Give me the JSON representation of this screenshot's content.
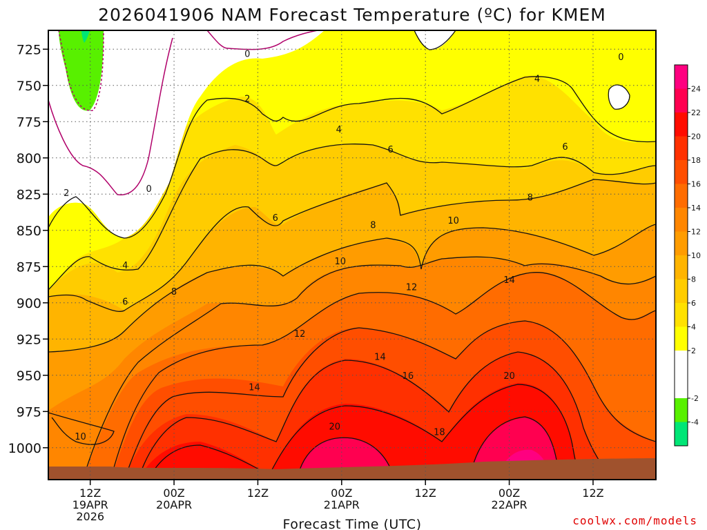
{
  "chart_data": {
    "type": "heatmap",
    "title": "2026041906 NAM Forecast Temperature (ºC) for KMEM",
    "xlabel": "Forecast Time (UTC)",
    "ylabel": "",
    "credit": "coolwx.com/models",
    "y_axis": {
      "unit": "hPa",
      "range": [
        1022,
        712
      ],
      "inverted": true,
      "ticks": [
        725,
        750,
        775,
        800,
        825,
        850,
        875,
        900,
        925,
        950,
        975,
        1000
      ]
    },
    "x_axis": {
      "range_hours": [
        -6,
        81
      ],
      "ticks": [
        {
          "hour": 0,
          "label": "12Z",
          "sub": "19APR",
          "sub2": "2026"
        },
        {
          "hour": 12,
          "label": "00Z",
          "sub": "20APR",
          "sub2": ""
        },
        {
          "hour": 24,
          "label": "12Z",
          "sub": "",
          "sub2": ""
        },
        {
          "hour": 36,
          "label": "00Z",
          "sub": "21APR",
          "sub2": ""
        },
        {
          "hour": 48,
          "label": "12Z",
          "sub": "",
          "sub2": ""
        },
        {
          "hour": 60,
          "label": "00Z",
          "sub": "22APR",
          "sub2": ""
        },
        {
          "hour": 72,
          "label": "12Z",
          "sub": "",
          "sub2": ""
        }
      ]
    },
    "grid": true,
    "colorbar": {
      "placement": "right",
      "levels": [
        -6,
        -4,
        -2,
        0,
        2,
        4,
        6,
        8,
        10,
        12,
        14,
        16,
        18,
        20,
        22,
        24,
        26
      ],
      "labels": [
        -4,
        -2,
        2,
        4,
        6,
        8,
        10,
        12,
        14,
        16,
        18,
        20,
        22,
        24
      ],
      "colors": [
        "#00e676",
        "#58f000",
        "#ffffff",
        "#ffffff",
        "#ffff00",
        "#ffe100",
        "#ffcc00",
        "#ffb400",
        "#ff9c00",
        "#ff8600",
        "#ff6c00",
        "#ff4e00",
        "#ff3000",
        "#ff0c00",
        "#ff0050",
        "#ff0080"
      ]
    },
    "ground_color": "#a0522d",
    "contour_labels": [
      {
        "value": "0",
        "hour": 22.5,
        "p": 728
      },
      {
        "value": "0",
        "hour": 8.4,
        "p": 821
      },
      {
        "value": "0",
        "hour": 76,
        "p": 730
      },
      {
        "value": "2",
        "hour": 22.5,
        "p": 759
      },
      {
        "value": "2",
        "hour": -3.4,
        "p": 824
      },
      {
        "value": "4",
        "hour": 35.6,
        "p": 780
      },
      {
        "value": "4",
        "hour": 64,
        "p": 745
      },
      {
        "value": "4",
        "hour": 5,
        "p": 874
      },
      {
        "value": "6",
        "hour": 43,
        "p": 794
      },
      {
        "value": "6",
        "hour": 68,
        "p": 792
      },
      {
        "value": "6",
        "hour": 26.5,
        "p": 841
      },
      {
        "value": "6",
        "hour": 5,
        "p": 899
      },
      {
        "value": "8",
        "hour": 12,
        "p": 892
      },
      {
        "value": "8",
        "hour": 40.5,
        "p": 846
      },
      {
        "value": "8",
        "hour": 63,
        "p": 827
      },
      {
        "value": "10",
        "hour": 52,
        "p": 843
      },
      {
        "value": "10",
        "hour": 35.8,
        "p": 871
      },
      {
        "value": "10",
        "hour": -1.4,
        "p": 992
      },
      {
        "value": "12",
        "hour": 30,
        "p": 921
      },
      {
        "value": "12",
        "hour": 46,
        "p": 889
      },
      {
        "value": "14",
        "hour": 60,
        "p": 884
      },
      {
        "value": "14",
        "hour": 41.5,
        "p": 937
      },
      {
        "value": "14",
        "hour": 23.5,
        "p": 958
      },
      {
        "value": "16",
        "hour": 45.5,
        "p": 950
      },
      {
        "value": "18",
        "hour": 50,
        "p": 989
      },
      {
        "value": "20",
        "hour": 35,
        "p": 985
      },
      {
        "value": "20",
        "hour": 60,
        "p": 950
      }
    ]
  }
}
